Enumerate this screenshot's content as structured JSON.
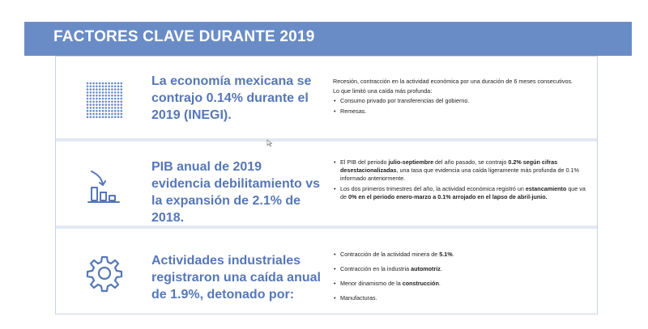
{
  "header": {
    "title": "FACTORES CLAVE DURANTE 2019"
  },
  "rows": [
    {
      "icon": "dot-grid-icon",
      "headline": "La economía mexicana se contrajo 0.14% durante el 2019 (INEGI).",
      "intro": "Recesión, contracción en la actividad económica por una duración de 6 meses consecutivos.",
      "intro2": "Lo que limitó una caída más profunda:",
      "bullets": [
        "Consumo privado por transferencias del gobierno.",
        "Remesas."
      ]
    },
    {
      "icon": "declining-chart-icon",
      "headline": "PIB anual de 2019 evidencia debilitamiento vs la expansión de 2.1% de 2018.",
      "b1": {
        "t1": "El PIB del periodo ",
        "b1": "julio-septiembre",
        "t2": " del año pasado, se contrajo ",
        "b2": "0.2% según cifras desestacionalizadas",
        "t3": ", una tasa que evidencia una caída ligeramente más profunda de 0.1% informado anteriormente."
      },
      "b2": {
        "t1": "Los dos primeros trimestres del año, la actividad económica registró un ",
        "b1": "estancamiento",
        "t2": " que va de ",
        "b2": "0% en el periodo enero-marzo a 0.1% arrojado en el lapso de abril-junio."
      }
    },
    {
      "icon": "gear-icon",
      "headline": "Actividades industriales registraron una caída anual de 1.9%, detonado por:",
      "bullets": [
        {
          "t": "Contracción de la actividad minera de ",
          "b": "5.1%",
          "e": "."
        },
        {
          "t": "Contracción en la industria ",
          "b": "automotriz",
          "e": "."
        },
        {
          "t": "Menor dinamismo de la ",
          "b": "construcción",
          "e": "."
        },
        {
          "t": "Manufacturas.",
          "b": "",
          "e": ""
        }
      ]
    }
  ],
  "colors": {
    "header": "#6a8cc6",
    "headline": "#5577b8",
    "separator": "#e3e9f2"
  }
}
